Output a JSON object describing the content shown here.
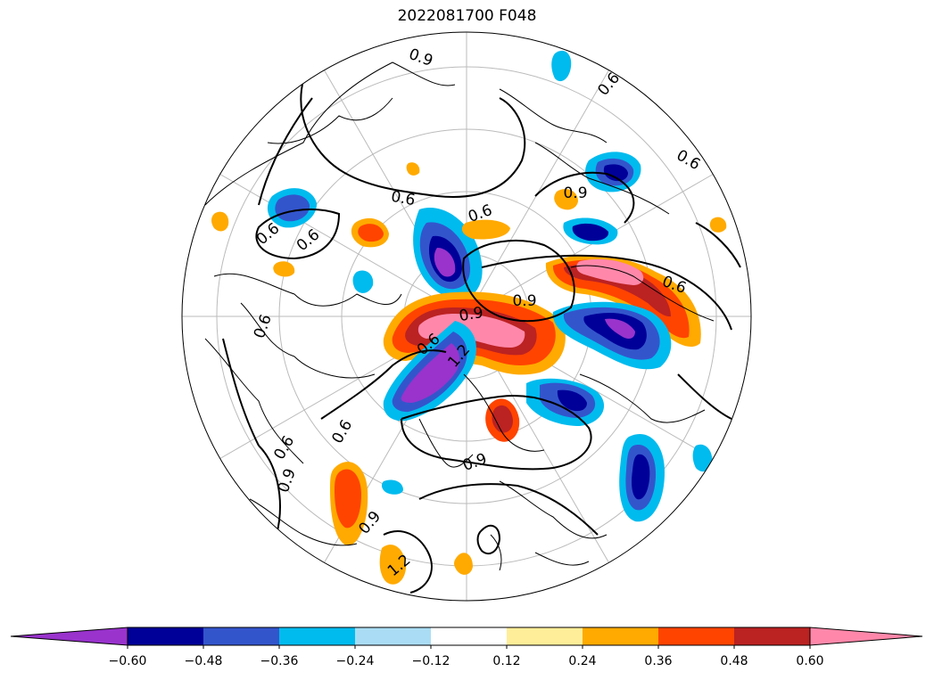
{
  "title": "2022081700 F048",
  "map": {
    "projection": "north-polar-stereographic",
    "graticule": "on",
    "contour_color": "#000000",
    "contour_labels": [
      "0.9",
      "0.6",
      "0.6",
      "0.6",
      "0.6",
      "0.9",
      "0.9",
      "0.9",
      "0.6",
      "0.6",
      "0.6",
      "0.6",
      "0.6",
      "0.6",
      "0.9",
      "0.9",
      "0.9",
      "1.2",
      "0.6",
      "1.2"
    ]
  },
  "colorbar": {
    "orientation": "horizontal",
    "extend": "both",
    "colors": [
      "#9933cc",
      "#000099",
      "#3355cc",
      "#00bbee",
      "#aaddf5",
      "#ffffff",
      "#ffee99",
      "#ffaa00",
      "#ff4400",
      "#bb2222",
      "#ff88aa"
    ],
    "ticks": [
      "−0.60",
      "−0.48",
      "−0.36",
      "−0.24",
      "−0.12",
      "0.12",
      "0.24",
      "0.36",
      "0.48",
      "0.60"
    ]
  },
  "chart_data": {
    "type": "heatmap",
    "title": "2022081700 F048",
    "levels": [
      -0.6,
      -0.48,
      -0.36,
      -0.24,
      -0.12,
      0.12,
      0.24,
      0.36,
      0.48,
      0.6
    ],
    "contour_levels": [
      0.6,
      0.9,
      1.2
    ]
  }
}
